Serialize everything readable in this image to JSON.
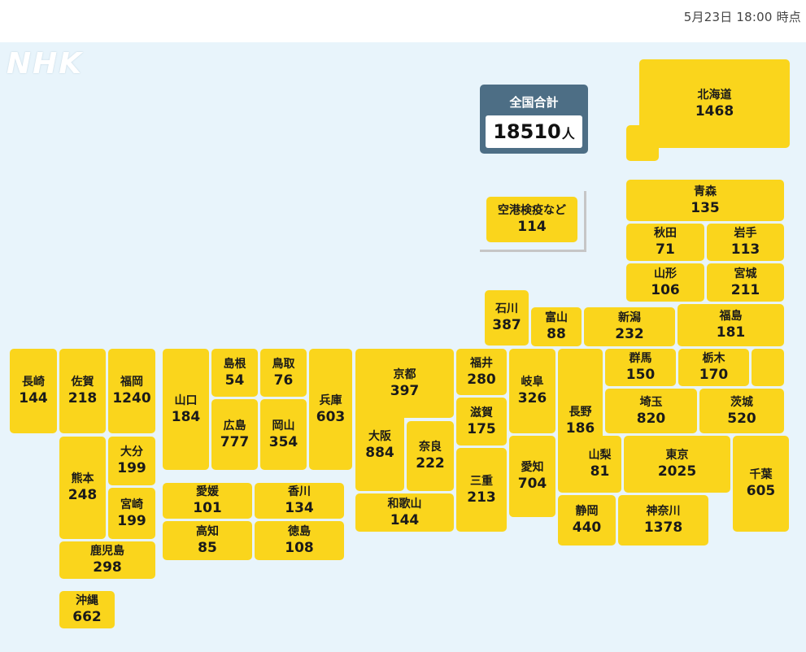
{
  "header": {
    "timestamp": "5月23日 18:00 時点"
  },
  "logo_text": "NHK",
  "total": {
    "label": "全国合計",
    "count": "18510",
    "unit": "人"
  },
  "prefectures": [
    {
      "key": "hokkaido",
      "name": "北海道",
      "count": "1468"
    },
    {
      "key": "airport",
      "name": "空港検疫など",
      "count": "114"
    },
    {
      "key": "aomori",
      "name": "青森",
      "count": "135"
    },
    {
      "key": "akita",
      "name": "秋田",
      "count": "71"
    },
    {
      "key": "iwate",
      "name": "岩手",
      "count": "113"
    },
    {
      "key": "yamagata",
      "name": "山形",
      "count": "106"
    },
    {
      "key": "miyagi",
      "name": "宮城",
      "count": "211"
    },
    {
      "key": "ishikawa",
      "name": "石川",
      "count": "387"
    },
    {
      "key": "toyama",
      "name": "富山",
      "count": "88"
    },
    {
      "key": "niigata",
      "name": "新潟",
      "count": "232"
    },
    {
      "key": "fukushima",
      "name": "福島",
      "count": "181"
    },
    {
      "key": "nagasaki",
      "name": "長崎",
      "count": "144"
    },
    {
      "key": "saga",
      "name": "佐賀",
      "count": "218"
    },
    {
      "key": "fukuoka",
      "name": "福岡",
      "count": "1240"
    },
    {
      "key": "yamaguchi",
      "name": "山口",
      "count": "184"
    },
    {
      "key": "shimane",
      "name": "島根",
      "count": "54"
    },
    {
      "key": "tottori",
      "name": "鳥取",
      "count": "76"
    },
    {
      "key": "hyogo",
      "name": "兵庫",
      "count": "603"
    },
    {
      "key": "kyoto",
      "name": "京都",
      "count": "397"
    },
    {
      "key": "fukui",
      "name": "福井",
      "count": "280"
    },
    {
      "key": "gifu",
      "name": "岐阜",
      "count": "326"
    },
    {
      "key": "nagano",
      "name": "長野",
      "count": "186"
    },
    {
      "key": "gunma",
      "name": "群馬",
      "count": "150"
    },
    {
      "key": "tochigi",
      "name": "栃木",
      "count": "170"
    },
    {
      "key": "saitama",
      "name": "埼玉",
      "count": "820"
    },
    {
      "key": "ibaraki",
      "name": "茨城",
      "count": "520"
    },
    {
      "key": "hiroshima",
      "name": "広島",
      "count": "777"
    },
    {
      "key": "okayama",
      "name": "岡山",
      "count": "354"
    },
    {
      "key": "osaka",
      "name": "大阪",
      "count": "884"
    },
    {
      "key": "nara",
      "name": "奈良",
      "count": "222"
    },
    {
      "key": "shiga",
      "name": "滋賀",
      "count": "175"
    },
    {
      "key": "mie",
      "name": "三重",
      "count": "213"
    },
    {
      "key": "aichi",
      "name": "愛知",
      "count": "704"
    },
    {
      "key": "kumamoto",
      "name": "熊本",
      "count": "248"
    },
    {
      "key": "oita",
      "name": "大分",
      "count": "199"
    },
    {
      "key": "miyazaki",
      "name": "宮崎",
      "count": "199"
    },
    {
      "key": "ehime",
      "name": "愛媛",
      "count": "101"
    },
    {
      "key": "kagawa",
      "name": "香川",
      "count": "134"
    },
    {
      "key": "kochi",
      "name": "高知",
      "count": "85"
    },
    {
      "key": "tokushima",
      "name": "徳島",
      "count": "108"
    },
    {
      "key": "wakayama",
      "name": "和歌山",
      "count": "144"
    },
    {
      "key": "yamanashi",
      "name": "山梨",
      "count": "81"
    },
    {
      "key": "tokyo",
      "name": "東京",
      "count": "2025"
    },
    {
      "key": "chiba",
      "name": "千葉",
      "count": "605"
    },
    {
      "key": "shizuoka",
      "name": "静岡",
      "count": "440"
    },
    {
      "key": "kanagawa",
      "name": "神奈川",
      "count": "1378"
    },
    {
      "key": "kagoshima",
      "name": "鹿児島",
      "count": "298"
    },
    {
      "key": "okinawa",
      "name": "沖縄",
      "count": "662"
    }
  ],
  "colors": {
    "tile": "#fad51c",
    "total_box": "#4d6e85",
    "map_background": "#e8f4fb"
  }
}
